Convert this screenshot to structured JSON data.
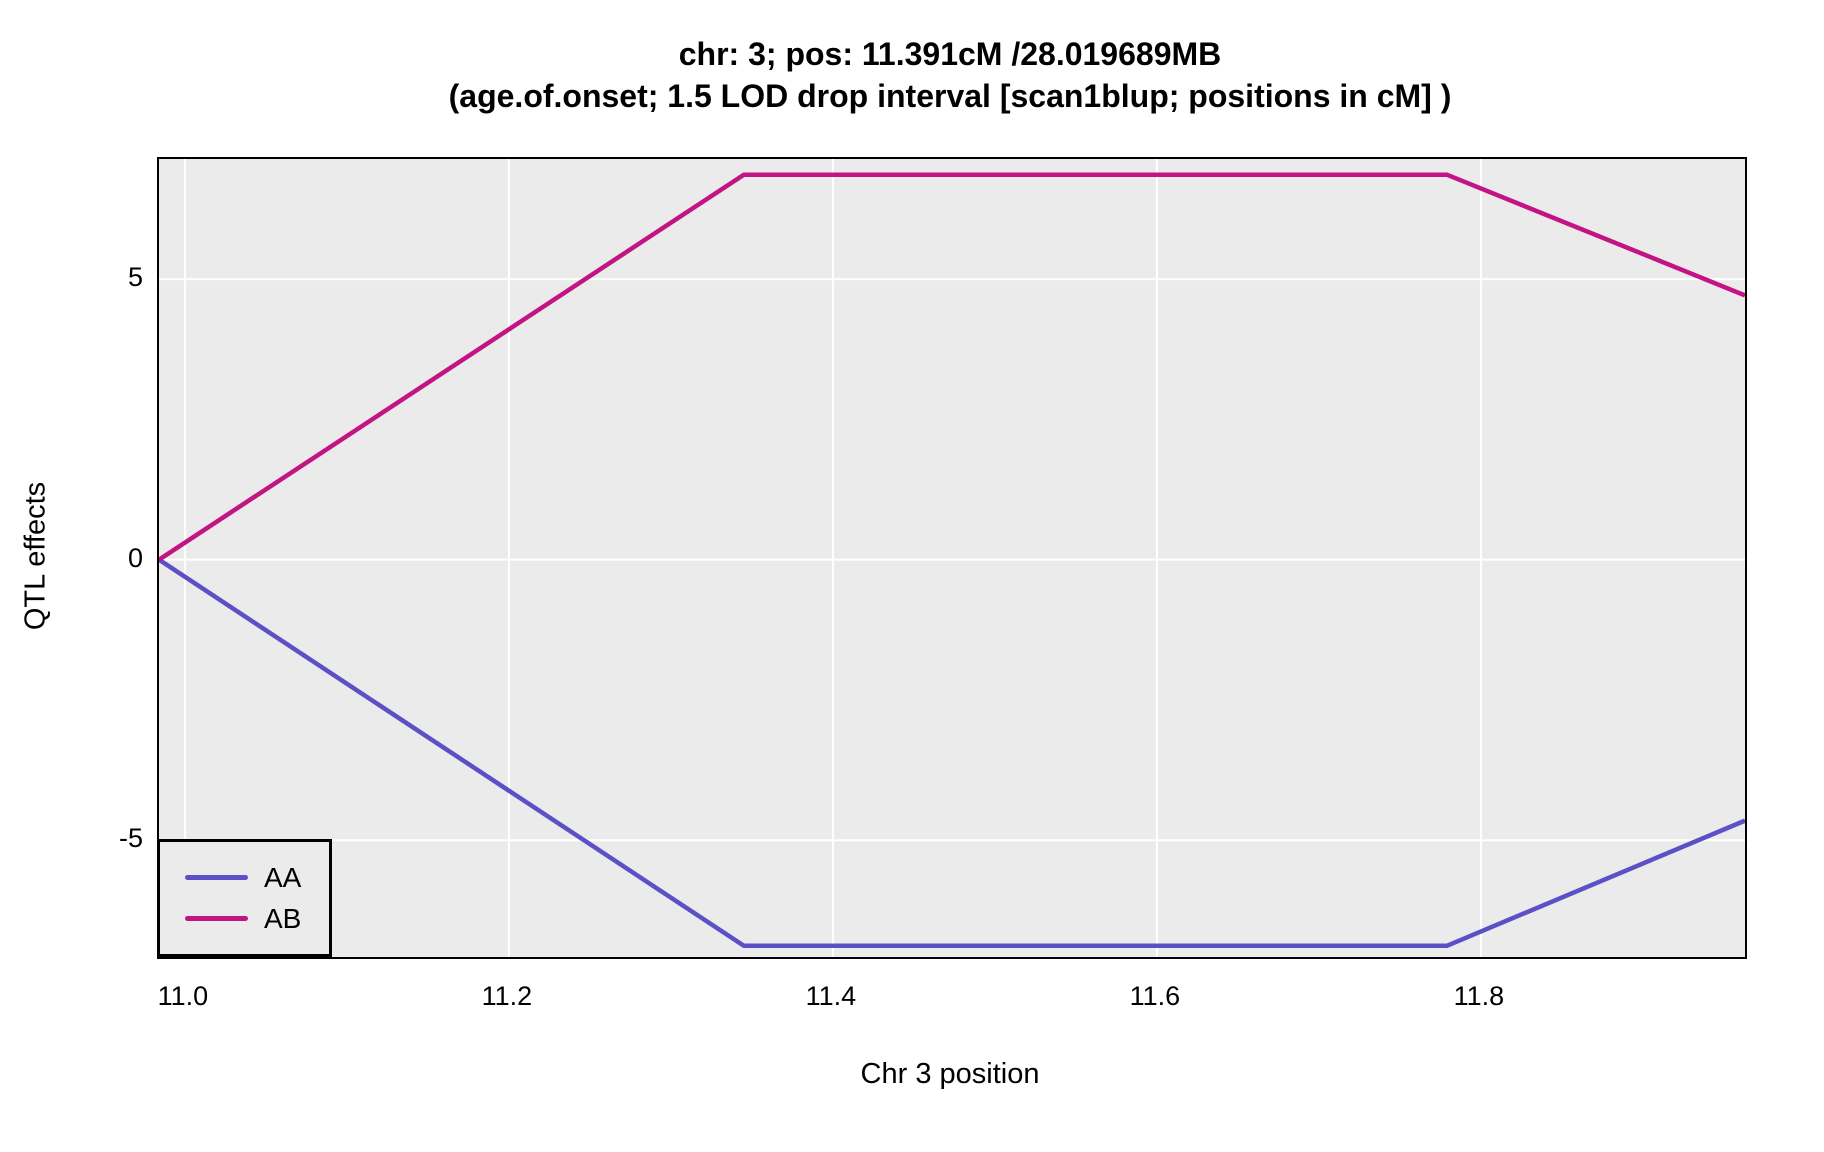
{
  "figure": {
    "title_line1": "chr: 3; pos: 11.391cM /28.019689MB",
    "title_line2": "(age.of.onset; 1.5 LOD drop interval [scan1blup; positions in cM] )",
    "x_axis_label": "Chr 3 position",
    "y_axis_label": "QTL effects"
  },
  "legend": {
    "items": [
      {
        "label": "AA",
        "color": "#5B50C6"
      },
      {
        "label": "AB",
        "color": "#C31484"
      }
    ]
  },
  "chart_data": {
    "type": "line",
    "title": "chr: 3; pos: 11.391cM /28.019689MB",
    "subtitle": "(age.of.onset; 1.5 LOD drop interval [scan1blup; positions in cM] )",
    "xlabel": "Chr 3 position",
    "ylabel": "QTL effects",
    "x_range": [
      10.984,
      11.963
    ],
    "y_range": [
      -7.08,
      7.14
    ],
    "x_ticks": [
      11.0,
      11.2,
      11.4,
      11.6,
      11.8
    ],
    "x_tick_labels": [
      "11.0",
      "11.2",
      "11.4",
      "11.6",
      "11.8"
    ],
    "y_ticks": [
      -5,
      0,
      5
    ],
    "y_tick_labels": [
      "-5",
      "0",
      "5"
    ],
    "grid": true,
    "grid_color": "#FFFFFF",
    "plot_background": "#EBEBEB",
    "line_width": 4.5,
    "legend_position": "bottom-left",
    "series": [
      {
        "name": "AA",
        "color": "#5B50C6",
        "points": [
          [
            10.984,
            0
          ],
          [
            11.345,
            -6.88
          ],
          [
            11.779,
            -6.88
          ],
          [
            11.963,
            -4.65
          ]
        ]
      },
      {
        "name": "AB",
        "color": "#C31484",
        "points": [
          [
            10.984,
            0
          ],
          [
            11.345,
            6.86
          ],
          [
            11.779,
            6.86
          ],
          [
            11.963,
            4.71
          ]
        ]
      }
    ]
  }
}
